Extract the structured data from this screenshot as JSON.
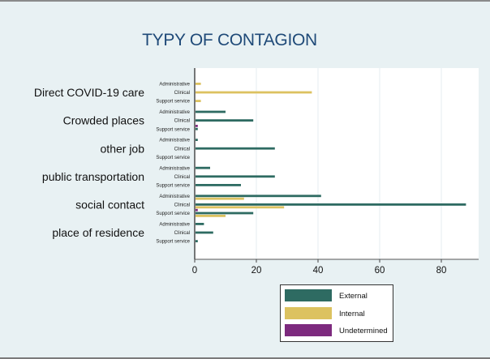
{
  "chart_data": {
    "type": "bar",
    "orientation": "horizontal",
    "title": "TYPY OF CONTAGION",
    "xlabel": "",
    "ylabel": "",
    "xlim": [
      0,
      92
    ],
    "xticks": [
      0,
      20,
      40,
      60,
      80
    ],
    "grid": true,
    "legend_position": "bottom-center",
    "categories": [
      "Direct COVID-19 care",
      "Crowded places",
      "other job",
      "public transportation",
      "social contact",
      "place of residence"
    ],
    "subcategories": [
      "Administrative",
      "Clinical",
      "Support service"
    ],
    "series": [
      {
        "name": "External",
        "color": "#2e6b62",
        "values": [
          [
            0,
            0,
            0
          ],
          [
            10,
            19,
            1
          ],
          [
            1,
            26,
            0
          ],
          [
            5,
            26,
            15
          ],
          [
            41,
            88,
            19
          ],
          [
            3,
            6,
            1
          ]
        ]
      },
      {
        "name": "Internal",
        "color": "#dcc260",
        "values": [
          [
            2,
            38,
            2
          ],
          [
            0,
            0,
            0
          ],
          [
            0,
            0,
            0
          ],
          [
            0,
            0,
            0
          ],
          [
            16,
            29,
            10
          ],
          [
            0,
            0,
            0
          ]
        ]
      },
      {
        "name": "Undetermined",
        "color": "#7d2a7e",
        "values": [
          [
            0,
            0,
            0
          ],
          [
            0,
            1,
            0
          ],
          [
            0,
            0,
            0
          ],
          [
            0,
            0,
            0
          ],
          [
            0,
            1,
            0
          ],
          [
            0,
            0,
            0
          ]
        ]
      }
    ]
  }
}
